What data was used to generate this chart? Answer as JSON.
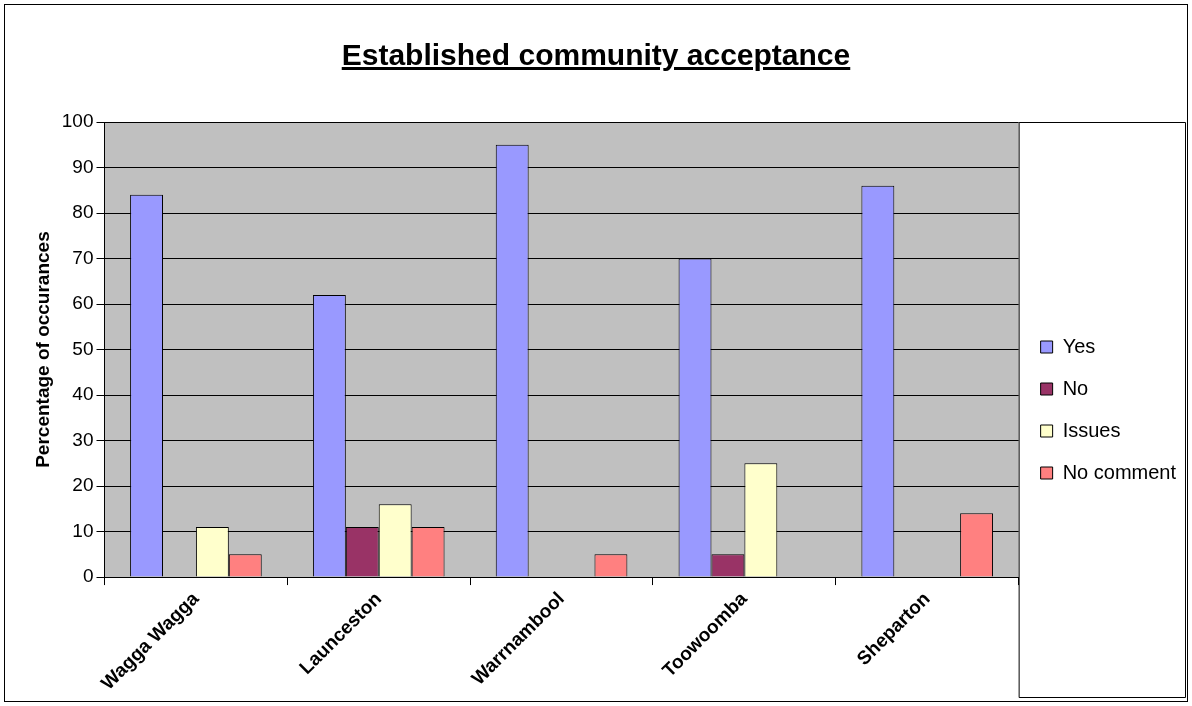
{
  "chart_data": {
    "type": "bar",
    "title": "Established community acceptance",
    "ylabel": "Percentage of occurances",
    "categories": [
      "Wagga Wagga",
      "Launceston",
      "Warrnambool",
      "Toowoomba",
      "Sheparton"
    ],
    "series": [
      {
        "name": "Yes",
        "color": "#9999ff",
        "values": [
          84,
          62,
          95,
          70,
          86
        ]
      },
      {
        "name": "No",
        "color": "#993366",
        "values": [
          0,
          11,
          0,
          5,
          0
        ]
      },
      {
        "name": "Issues",
        "color": "#ffffcc",
        "values": [
          11,
          16,
          0,
          25,
          0
        ]
      },
      {
        "name": "No comment",
        "color": "#ff8080",
        "values": [
          5,
          11,
          5,
          0,
          14
        ]
      }
    ],
    "ylim": [
      0,
      100
    ],
    "yticks": [
      0,
      10,
      20,
      30,
      40,
      50,
      60,
      70,
      80,
      90,
      100
    ],
    "grid": "y",
    "legend": "right"
  }
}
